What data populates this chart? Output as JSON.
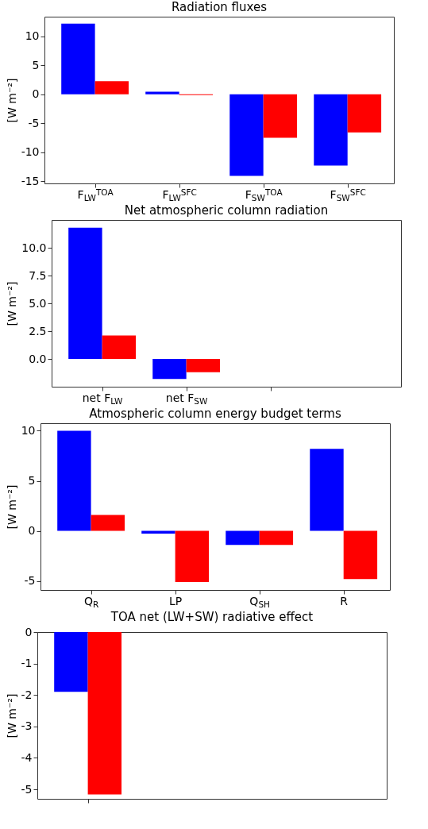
{
  "chart_data": [
    {
      "type": "bar",
      "title": "Radiation fluxes",
      "ylabel": "[W m⁻²]",
      "categories": [
        "F$_{LW}$$^{TOA}$",
        "F$_{LW}$$^{SFC}$",
        "F$_{SW}$$^{TOA}$",
        "F$_{SW}$$^{SFC}$"
      ],
      "series": [
        {
          "color": "#0000ff",
          "values": [
            12.2,
            0.45,
            -14.1,
            -12.3
          ]
        },
        {
          "color": "#ff0000",
          "values": [
            2.25,
            -0.15,
            -7.5,
            -6.6
          ]
        }
      ],
      "ylim": [
        -15.4,
        13.4
      ],
      "yticks": [
        -15,
        -10,
        -5,
        0,
        5,
        10
      ]
    },
    {
      "type": "bar",
      "title": "Net atmospheric column radiation",
      "ylabel": "[W m⁻²]",
      "categories": [
        "net F$_{LW}$",
        "net F$_{SW}$",
        null
      ],
      "series": [
        {
          "color": "#0000ff",
          "values": [
            11.8,
            -1.8,
            null
          ]
        },
        {
          "color": "#ff0000",
          "values": [
            2.1,
            -1.2,
            null
          ]
        }
      ],
      "ylim": [
        -2.5,
        12.5
      ],
      "yticks": [
        {
          "value": 0,
          "label": "0.0"
        },
        {
          "value": 2.5,
          "label": "2.5"
        },
        {
          "value": 5,
          "label": "5.0"
        },
        {
          "value": 7.5,
          "label": "7.5"
        },
        {
          "value": 10,
          "label": "10.0"
        }
      ]
    },
    {
      "type": "bar",
      "title": "Atmospheric column energy budget terms",
      "ylabel": "[W m⁻²]",
      "categories": [
        "Q$_{R}$",
        "LP",
        "Q$_{SH}$",
        "R"
      ],
      "series": [
        {
          "color": "#0000ff",
          "values": [
            10.0,
            -0.28,
            -1.4,
            8.2
          ]
        },
        {
          "color": "#ff0000",
          "values": [
            1.6,
            -5.1,
            -1.4,
            -4.8
          ]
        }
      ],
      "ylim": [
        -5.9,
        10.75
      ],
      "yticks": [
        -5,
        0,
        5,
        10
      ]
    },
    {
      "type": "bar",
      "title": "TOA net (LW+SW) radiative effect",
      "ylabel": "[W m⁻²]",
      "categories": [
        null
      ],
      "series": [
        {
          "color": "#0000ff",
          "values": [
            -1.9
          ]
        },
        {
          "color": "#ff0000",
          "values": [
            -5.16
          ]
        }
      ],
      "ylim": [
        -5.3,
        0
      ],
      "yticks": [
        -5,
        -4,
        -3,
        -2,
        -1,
        0
      ]
    }
  ]
}
